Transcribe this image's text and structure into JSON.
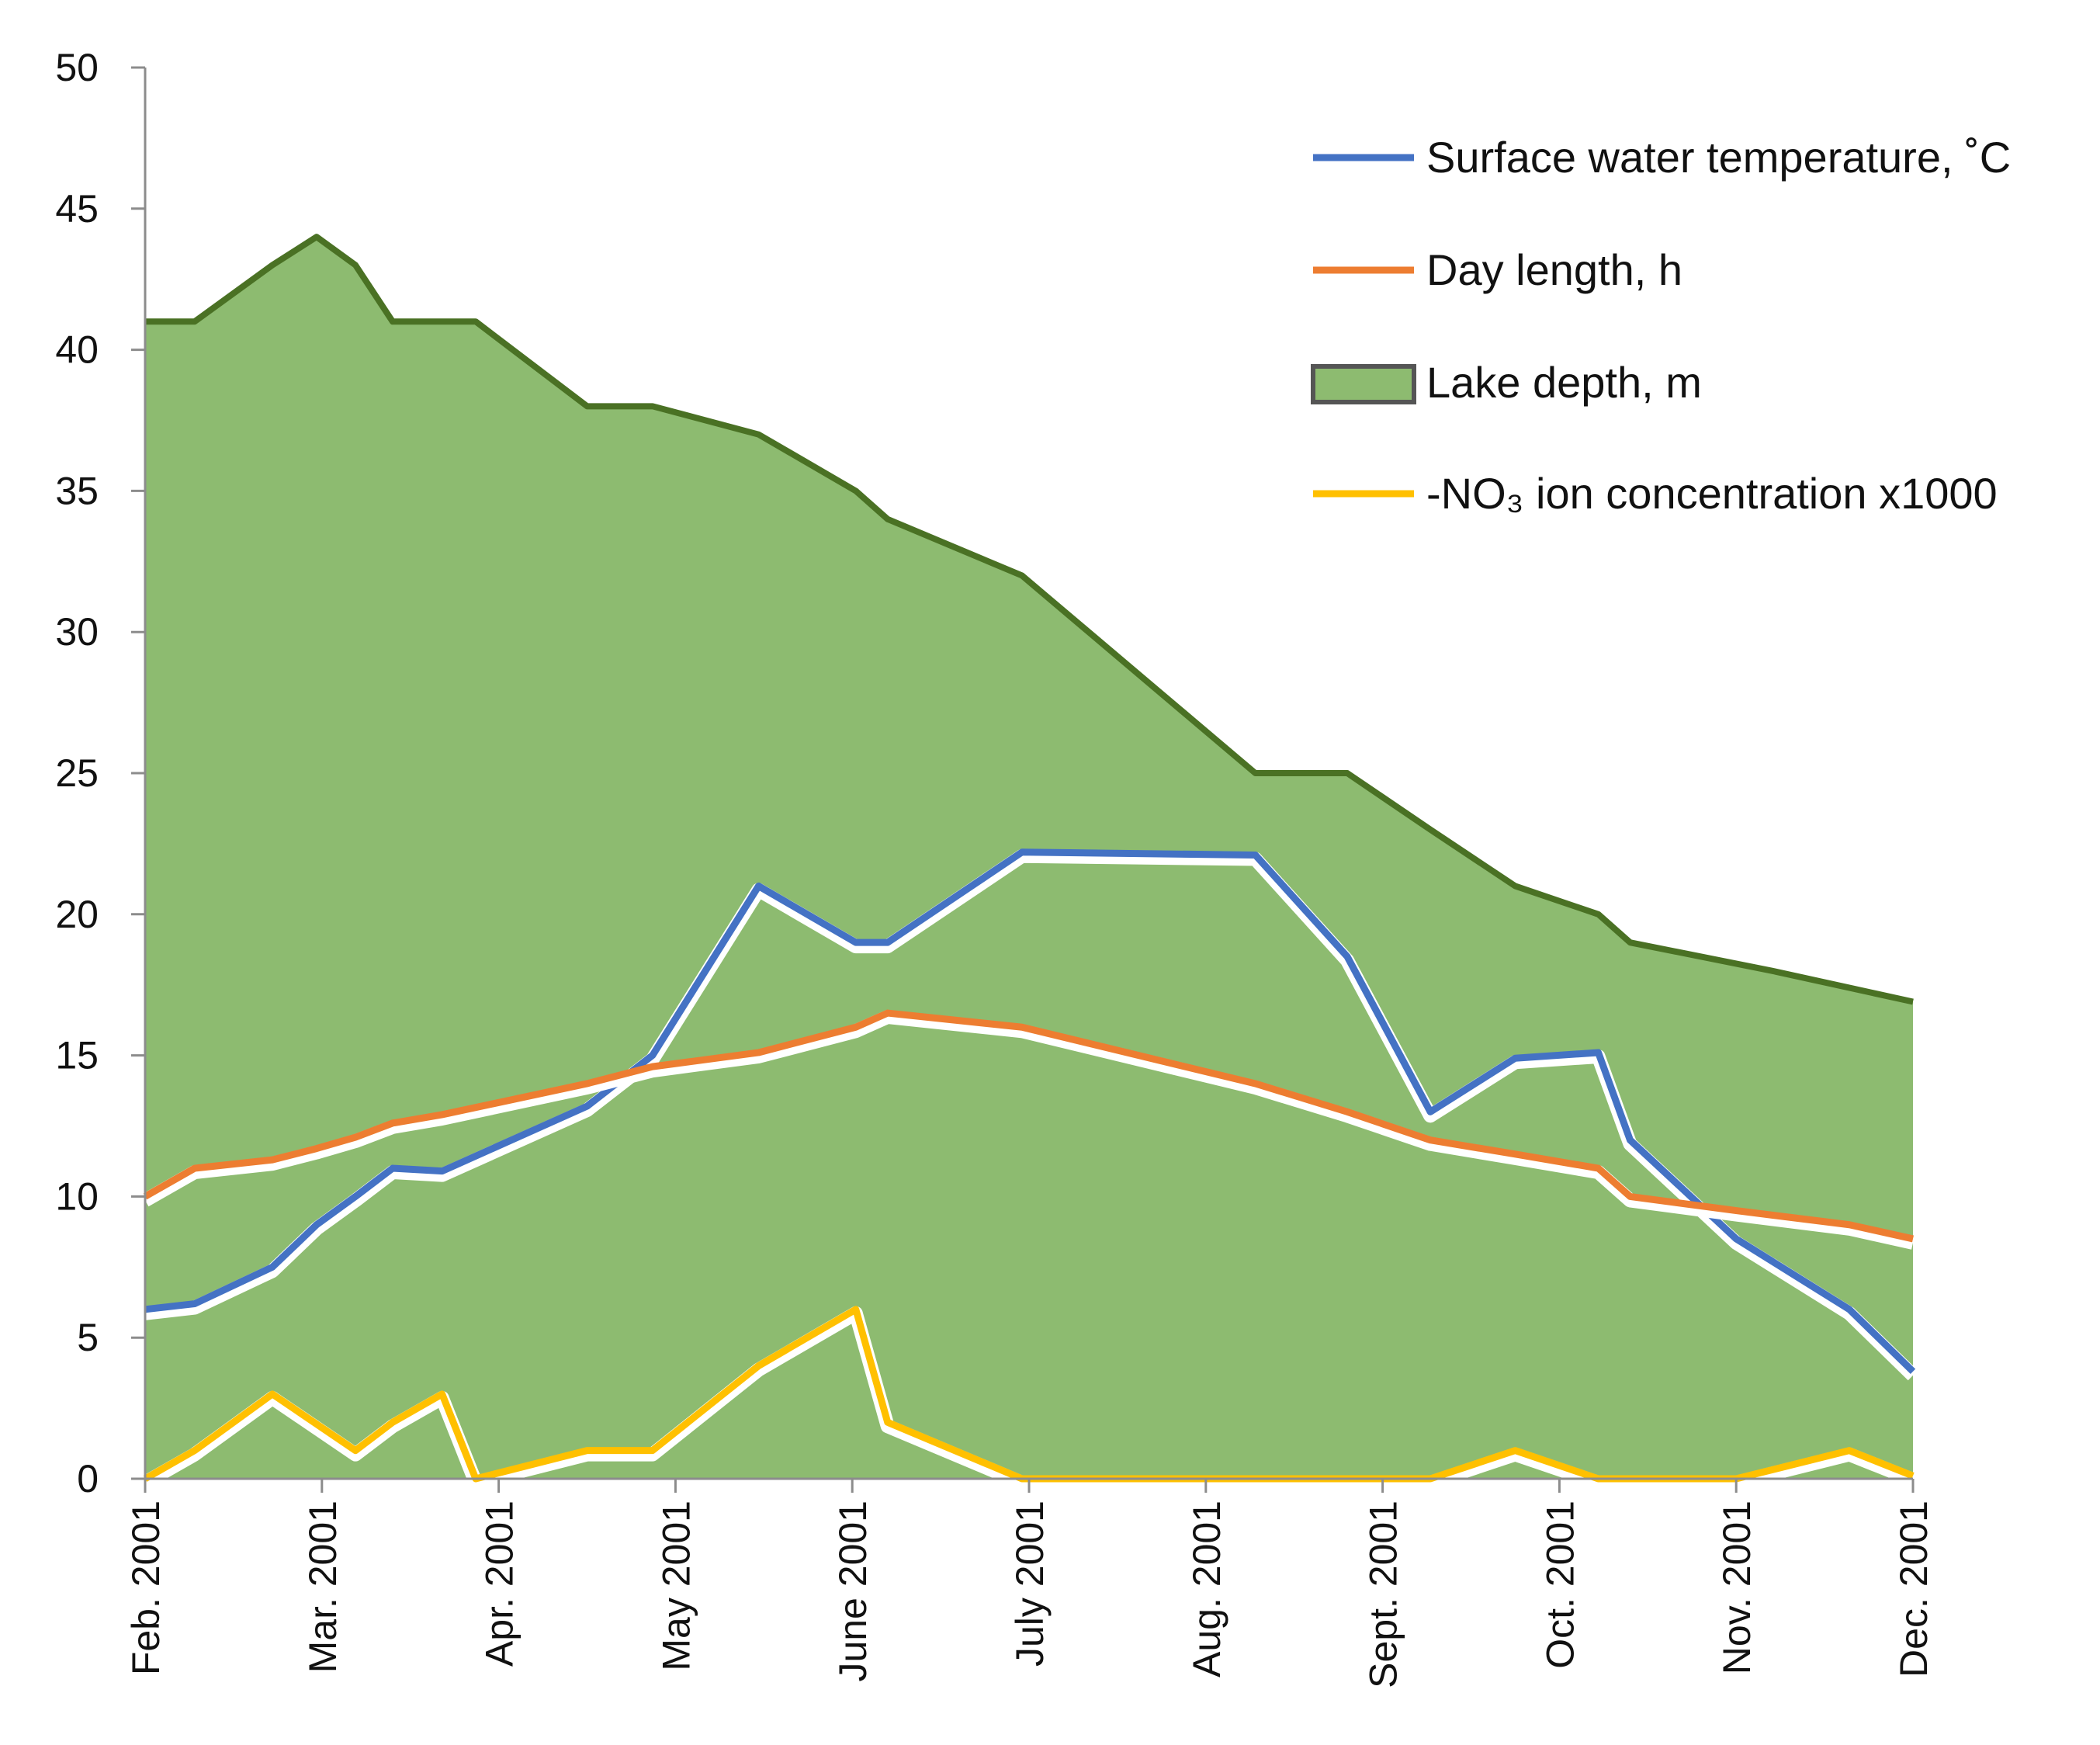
{
  "chart_data": {
    "type": "area",
    "title": "",
    "xlabel": "",
    "ylabel": "",
    "ylim": [
      0,
      50
    ],
    "y_ticks": [
      "0",
      "5",
      "10",
      "15",
      "20",
      "25",
      "30",
      "35",
      "40",
      "45",
      "50"
    ],
    "x_ticks": [
      {
        "label": "Feb. 2001",
        "x": 0
      },
      {
        "label": "Mar. 2001",
        "x": 1
      },
      {
        "label": "Apr. 2001",
        "x": 2
      },
      {
        "label": "May 2001",
        "x": 3
      },
      {
        "label": "June 2001",
        "x": 4
      },
      {
        "label": "July 2001",
        "x": 5
      },
      {
        "label": "Aug. 2001",
        "x": 6
      },
      {
        "label": "Sept. 2001",
        "x": 7
      },
      {
        "label": "Oct. 2001",
        "x": 8
      },
      {
        "label": "Nov. 2001",
        "x": 9
      },
      {
        "label": "Dec. 2001",
        "x": 10
      }
    ],
    "grid": false,
    "legend_position": "top-right",
    "series": [
      {
        "name": "Lake depth, m",
        "kind": "area",
        "color": "#8dbb70",
        "edge_color": "#4a7124",
        "points": [
          [
            0,
            41
          ],
          [
            0.28,
            41
          ],
          [
            0.72,
            43
          ],
          [
            0.97,
            44
          ],
          [
            1.19,
            43
          ],
          [
            1.4,
            41
          ],
          [
            1.87,
            41
          ],
          [
            2.5,
            38
          ],
          [
            2.87,
            38
          ],
          [
            3.47,
            37
          ],
          [
            4.02,
            35
          ],
          [
            4.2,
            34
          ],
          [
            4.96,
            32
          ],
          [
            6.28,
            25
          ],
          [
            6.8,
            25
          ],
          [
            7.27,
            23
          ],
          [
            7.75,
            21
          ],
          [
            8.22,
            20
          ],
          [
            8.4,
            19
          ],
          [
            9.2,
            18
          ],
          [
            10,
            16.9
          ]
        ]
      },
      {
        "name": "Surface water temperature, ˚C",
        "kind": "line",
        "color": "#4472c4",
        "points": [
          [
            0,
            6
          ],
          [
            0.28,
            6.2
          ],
          [
            0.72,
            7.5
          ],
          [
            0.97,
            9
          ],
          [
            1.19,
            10
          ],
          [
            1.4,
            11
          ],
          [
            1.68,
            10.9
          ],
          [
            2.5,
            13.2
          ],
          [
            2.87,
            15
          ],
          [
            3.47,
            21
          ],
          [
            4.02,
            19
          ],
          [
            4.2,
            19
          ],
          [
            4.96,
            22.2
          ],
          [
            6.28,
            22.1
          ],
          [
            6.8,
            18.5
          ],
          [
            7.27,
            13
          ],
          [
            7.75,
            14.9
          ],
          [
            8.22,
            15.1
          ],
          [
            8.4,
            12
          ],
          [
            9.0,
            8.5
          ],
          [
            9.64,
            6
          ],
          [
            10,
            3.8
          ]
        ]
      },
      {
        "name": "Day length, h",
        "kind": "line",
        "color": "#ed7d31",
        "points": [
          [
            0,
            10
          ],
          [
            0.28,
            11
          ],
          [
            0.72,
            11.3
          ],
          [
            0.97,
            11.7
          ],
          [
            1.19,
            12.1
          ],
          [
            1.4,
            12.6
          ],
          [
            1.68,
            12.9
          ],
          [
            2.5,
            14
          ],
          [
            2.87,
            14.6
          ],
          [
            3.47,
            15.1
          ],
          [
            4.02,
            16
          ],
          [
            4.2,
            16.5
          ],
          [
            4.96,
            16
          ],
          [
            6.28,
            14
          ],
          [
            6.8,
            13
          ],
          [
            7.27,
            12
          ],
          [
            7.75,
            11.5
          ],
          [
            8.22,
            11
          ],
          [
            8.4,
            10
          ],
          [
            9.0,
            9.5
          ],
          [
            9.64,
            9
          ],
          [
            10,
            8.5
          ]
        ]
      },
      {
        "name": "-NO₃ ion concentration x1000",
        "kind": "line",
        "color": "#ffc000",
        "points": [
          [
            0,
            0
          ],
          [
            0.28,
            1
          ],
          [
            0.72,
            3
          ],
          [
            1.19,
            1
          ],
          [
            1.4,
            2
          ],
          [
            1.68,
            3
          ],
          [
            1.87,
            0
          ],
          [
            2.5,
            1
          ],
          [
            2.87,
            1
          ],
          [
            3.47,
            4
          ],
          [
            4.02,
            6
          ],
          [
            4.2,
            2
          ],
          [
            4.96,
            0
          ],
          [
            7.27,
            0
          ],
          [
            7.75,
            1
          ],
          [
            8.22,
            0
          ],
          [
            9.0,
            0
          ],
          [
            9.64,
            1
          ],
          [
            10,
            0.1
          ]
        ]
      }
    ]
  }
}
